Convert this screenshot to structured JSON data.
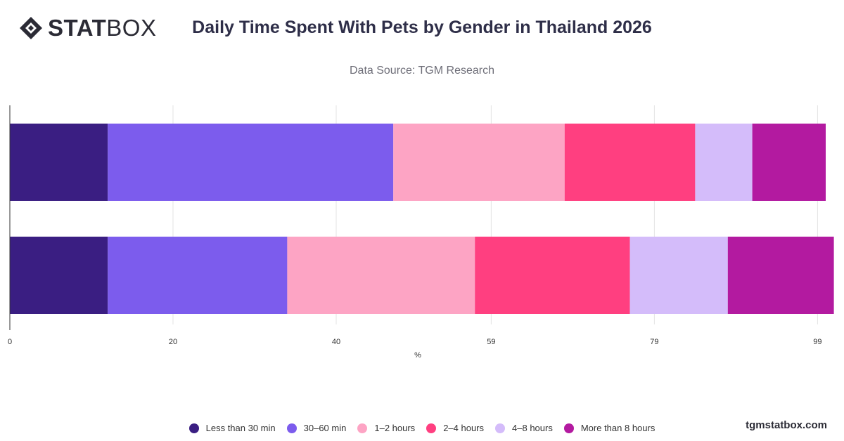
{
  "logo": {
    "bold": "STAT",
    "light": "BOX"
  },
  "header": {
    "title": "Daily Time Spent With Pets by Gender in Thailand 2026",
    "subtitle": "Data Source: TGM Research"
  },
  "brand": "tgmstatbox.com",
  "chart_data": {
    "type": "bar",
    "orientation": "horizontal",
    "stacked": true,
    "title": "Daily Time Spent With Pets by Gender in Thailand 2026",
    "xlabel": "%",
    "ylabel": "",
    "xlim": [
      0,
      100
    ],
    "x_ticks": [
      0,
      20,
      40,
      59,
      79,
      99
    ],
    "categories": [
      "",
      ""
    ],
    "grid": true,
    "legend_position": "bottom",
    "series": [
      {
        "name": "Less than 30 min",
        "color": "#3a1e82",
        "values": [
          12,
          12
        ]
      },
      {
        "name": "30–60 min",
        "color": "#7c5ced",
        "values": [
          35,
          22
        ]
      },
      {
        "name": "1–2 hours",
        "color": "#fda4c4",
        "values": [
          21,
          23
        ]
      },
      {
        "name": "2–4 hours",
        "color": "#ff3f80",
        "values": [
          16,
          19
        ]
      },
      {
        "name": "4–8 hours",
        "color": "#d4bcfa",
        "values": [
          7,
          12
        ]
      },
      {
        "name": "More than 8 hours",
        "color": "#b31aa0",
        "values": [
          9,
          13
        ]
      }
    ]
  }
}
